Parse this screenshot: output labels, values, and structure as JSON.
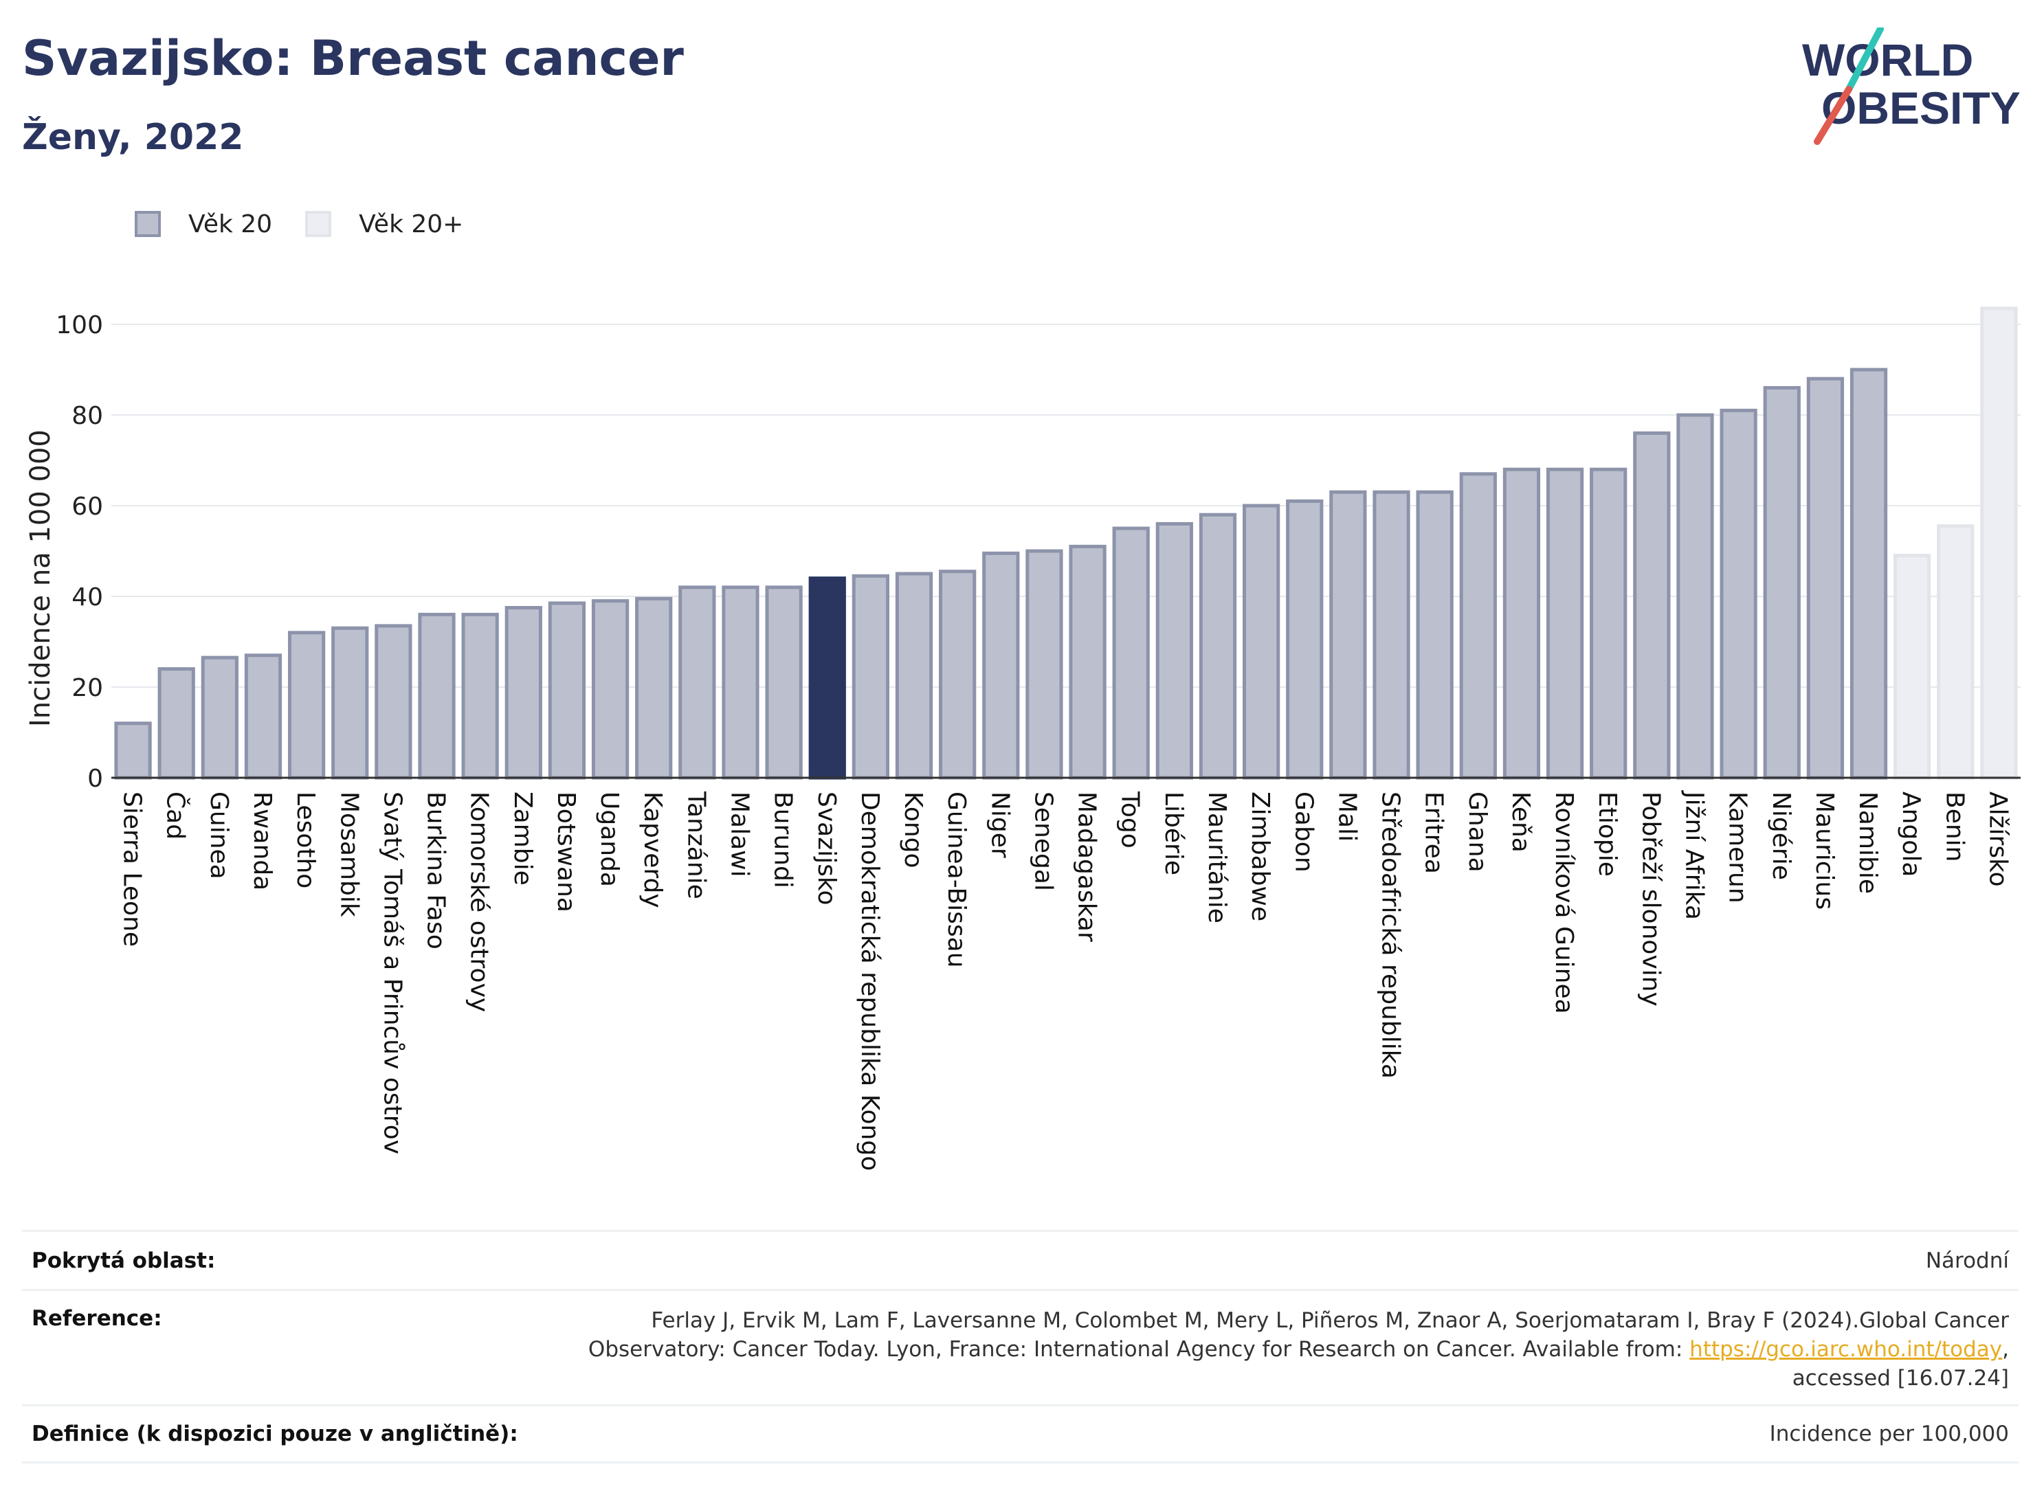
{
  "header": {
    "title": "Svazijsko: Breast cancer",
    "subtitle": "Ženy, 2022"
  },
  "logo": {
    "line1": "WORLD",
    "line2": "OBESITY"
  },
  "legend": [
    {
      "label": "Věk 20",
      "color": "#bcc0ce"
    },
    {
      "label": "Věk 20+",
      "color": "#eceef3"
    }
  ],
  "colors": {
    "bar_fill": "#bcc0ce",
    "bar_stroke": "#8d93aa",
    "bar_fill_light": "#eceef3",
    "bar_stroke_light": "#e2e4ea",
    "highlight": "#2a3560",
    "logo_teal": "#2ec4b6",
    "logo_red": "#e05a4f",
    "link": "#e6ac21"
  },
  "chart_data": {
    "type": "bar",
    "ylabel": "Incidence na 100 000",
    "ylim": [
      0,
      110
    ],
    "yticks": [
      0,
      20,
      40,
      60,
      80,
      100
    ],
    "grid": true,
    "legend_position": "top-left",
    "highlight": "Svazijsko",
    "categories": [
      "Sierra Leone",
      "Čad",
      "Guinea",
      "Rwanda",
      "Lesotho",
      "Mosambik",
      "Svatý Tomáš a Princův ostrov",
      "Burkina Faso",
      "Komorské ostrovy",
      "Zambie",
      "Botswana",
      "Uganda",
      "Kapverdy",
      "Tanzánie",
      "Malawi",
      "Burundi",
      "Svazijsko",
      "Demokratická republika Kongo",
      "Kongo",
      "Guinea-Bissau",
      "Niger",
      "Senegal",
      "Madagaskar",
      "Togo",
      "Libérie",
      "Mauritánie",
      "Zimbabwe",
      "Gabon",
      "Mali",
      "Středoafrická republika",
      "Eritrea",
      "Ghana",
      "Keňa",
      "Rovníková Guinea",
      "Etiopie",
      "Pobřeží slonoviny",
      "Jižní Afrika",
      "Kamerun",
      "Nigérie",
      "Mauricius",
      "Namibie",
      "Angola",
      "Benin",
      "Alžírsko"
    ],
    "values": [
      12,
      24,
      26.5,
      27,
      32,
      33,
      33.5,
      36,
      36,
      37.5,
      38.5,
      39,
      39.5,
      42,
      42,
      42,
      44,
      44.5,
      45,
      45.5,
      49.5,
      50,
      51,
      55,
      56,
      58,
      60,
      61,
      63,
      63,
      63,
      67,
      68,
      68,
      68,
      76,
      80,
      81,
      86,
      88,
      90,
      49,
      55.5,
      103.5
    ],
    "groups": [
      "Věk 20",
      "Věk 20",
      "Věk 20",
      "Věk 20",
      "Věk 20",
      "Věk 20",
      "Věk 20",
      "Věk 20",
      "Věk 20",
      "Věk 20",
      "Věk 20",
      "Věk 20",
      "Věk 20",
      "Věk 20",
      "Věk 20",
      "Věk 20",
      "Věk 20",
      "Věk 20",
      "Věk 20",
      "Věk 20",
      "Věk 20",
      "Věk 20",
      "Věk 20",
      "Věk 20",
      "Věk 20",
      "Věk 20",
      "Věk 20",
      "Věk 20",
      "Věk 20",
      "Věk 20",
      "Věk 20",
      "Věk 20",
      "Věk 20",
      "Věk 20",
      "Věk 20",
      "Věk 20",
      "Věk 20",
      "Věk 20",
      "Věk 20",
      "Věk 20",
      "Věk 20",
      "Věk 20+",
      "Věk 20+",
      "Věk 20+"
    ]
  },
  "footer": {
    "coverage_label": "Pokrytá oblast:",
    "coverage_value": "Národní",
    "reference_label": "Reference:",
    "reference_line1": "Ferlay J, Ervik M, Lam F, Laversanne M, Colombet M, Mery L, Piñeros M, Znaor A, Soerjomataram I, Bray F (2024).Global Cancer",
    "reference_line2": "Observatory: Cancer Today. Lyon, France: International Agency for Research on Cancer. Available from: ",
    "reference_link": "https://gco.iarc.who.int/today",
    "reference_line2_end": ",",
    "reference_line3": "accessed [16.07.24]",
    "definition_label": "Definice (k dispozici pouze v angličtině):",
    "definition_value": "Incidence per 100,000"
  }
}
